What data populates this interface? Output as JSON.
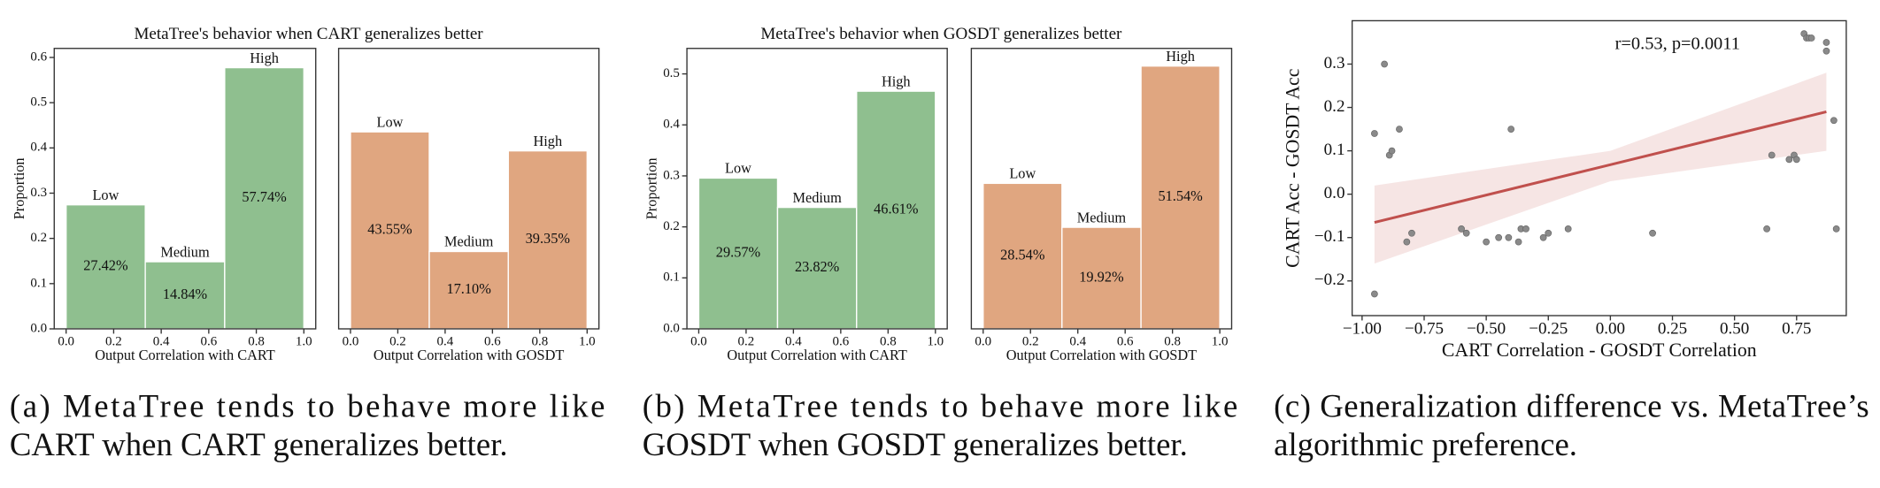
{
  "chart_data": [
    {
      "type": "histogram",
      "title": "MetaTree's behavior when CART generalizes better",
      "xlabel": "Output Correlation with CART",
      "ylabel": "Proportion",
      "bins": [
        0,
        0.333,
        0.667,
        1
      ],
      "values": [
        0.2742,
        0.1484,
        0.5774
      ],
      "value_labels": [
        "27.42%",
        "14.84%",
        "57.74%"
      ],
      "categories": [
        "Low",
        "Medium",
        "High"
      ],
      "color": "#8fbf8f",
      "xlim": [
        -0.05,
        1.05
      ],
      "xticks": [
        {
          "value": 0,
          "label": "0.0"
        },
        0.2,
        0.4,
        0.6,
        0.8,
        {
          "value": 1,
          "label": "1.0"
        }
      ],
      "ylim": [
        0,
        0.62
      ],
      "yticks": [
        {
          "value": 0,
          "label": "0.0"
        },
        0.1,
        0.2,
        0.3,
        0.4,
        0.5,
        0.6
      ]
    },
    {
      "type": "histogram",
      "xlabel": "Output Correlation with GOSDT",
      "bins": [
        0,
        0.333,
        0.667,
        1
      ],
      "values": [
        0.4355,
        0.171,
        0.3935
      ],
      "value_labels": [
        "43.55%",
        "17.10%",
        "39.35%"
      ],
      "categories": [
        "Low",
        "Medium",
        "High"
      ],
      "color": "#e0a680",
      "xlim": [
        -0.05,
        1.05
      ],
      "xticks": [
        {
          "value": 0,
          "label": "0.0"
        },
        0.2,
        0.4,
        0.6,
        0.8,
        {
          "value": 1,
          "label": "1.0"
        }
      ],
      "ylim": [
        0,
        0.62
      ]
    },
    {
      "type": "histogram",
      "title": "MetaTree's behavior when GOSDT generalizes better",
      "xlabel": "Output Correlation with CART",
      "ylabel": "Proportion",
      "bins": [
        0,
        0.333,
        0.667,
        1
      ],
      "values": [
        0.2957,
        0.2382,
        0.4661
      ],
      "value_labels": [
        "29.57%",
        "23.82%",
        "46.61%"
      ],
      "categories": [
        "Low",
        "Medium",
        "High"
      ],
      "color": "#8fbf8f",
      "xlim": [
        -0.05,
        1.05
      ],
      "xticks": [
        {
          "value": 0,
          "label": "0.0"
        },
        0.2,
        0.4,
        0.6,
        0.8,
        {
          "value": 1,
          "label": "1.0"
        }
      ],
      "ylim": [
        0,
        0.55
      ],
      "yticks": [
        {
          "value": 0,
          "label": "0.0"
        },
        0.1,
        0.2,
        0.3,
        0.4,
        0.5
      ]
    },
    {
      "type": "histogram",
      "xlabel": "Output Correlation with GOSDT",
      "bins": [
        0,
        0.333,
        0.667,
        1
      ],
      "values": [
        0.2854,
        0.1992,
        0.5154
      ],
      "value_labels": [
        "28.54%",
        "19.92%",
        "51.54%"
      ],
      "categories": [
        "Low",
        "Medium",
        "High"
      ],
      "color": "#e0a680",
      "xlim": [
        -0.05,
        1.05
      ],
      "xticks": [
        {
          "value": 0,
          "label": "0.0"
        },
        0.2,
        0.4,
        0.6,
        0.8,
        {
          "value": 1,
          "label": "1.0"
        }
      ],
      "ylim": [
        0,
        0.55
      ]
    },
    {
      "type": "scatter",
      "xlabel": "CART Correlation - GOSDT Correlation",
      "ylabel": "CART Acc - GOSDT Acc",
      "annotation": "r=0.53, p=0.0011",
      "color": "#8a8a8a",
      "x": [
        -0.95,
        -0.91,
        -0.89,
        -0.88,
        -0.85,
        -0.82,
        -0.8,
        -0.95,
        -0.6,
        -0.58,
        -0.5,
        -0.45,
        -0.41,
        -0.4,
        -0.37,
        -0.36,
        -0.34,
        -0.27,
        -0.25,
        -0.17,
        0.17,
        0.63,
        0.65,
        0.72,
        0.74,
        0.75,
        0.78,
        0.79,
        0.8,
        0.81,
        0.87,
        0.87,
        0.9,
        0.91
      ],
      "y": [
        0.14,
        0.3,
        0.09,
        0.1,
        0.15,
        -0.11,
        -0.09,
        -0.23,
        -0.08,
        -0.09,
        -0.11,
        -0.1,
        -0.1,
        0.15,
        -0.11,
        -0.08,
        -0.08,
        -0.1,
        -0.09,
        -0.08,
        -0.09,
        -0.08,
        0.09,
        0.08,
        0.09,
        0.08,
        0.37,
        0.36,
        0.36,
        0.36,
        0.33,
        0.35,
        0.17,
        -0.08
      ],
      "regression": {
        "color": "#c0504d",
        "x": [
          -0.95,
          0,
          0.87
        ],
        "y": [
          -0.065,
          0.068,
          0.19
        ],
        "ci_lower": [
          -0.16,
          0.03,
          0.1
        ],
        "ci_upper": [
          0.02,
          0.1,
          0.28
        ]
      },
      "xlim": [
        -1.04,
        0.95
      ],
      "xticks": [
        {
          "value": -1,
          "label": "−1.00"
        },
        {
          "value": -0.75,
          "label": "−0.75"
        },
        {
          "value": -0.5,
          "label": "−0.50"
        },
        {
          "value": -0.25,
          "label": "−0.25"
        },
        {
          "value": 0,
          "label": "0.00"
        },
        {
          "value": 0.25,
          "label": "0.25"
        },
        {
          "value": 0.5,
          "label": "0.50"
        },
        {
          "value": 0.75,
          "label": "0.75"
        }
      ],
      "ylim": [
        -0.28,
        0.4
      ],
      "yticks": [
        {
          "value": -0.2,
          "label": "−0.2"
        },
        {
          "value": -0.1,
          "label": "−0.1"
        },
        {
          "value": 0,
          "label": "0.0"
        },
        0.1,
        0.2,
        0.3
      ]
    }
  ],
  "captions": [
    [
      "(a) MetaTree tends to behave more like",
      "CART when CART generalizes better."
    ],
    [
      "(b) MetaTree tends to behave more like",
      "GOSDT when GOSDT generalizes better."
    ],
    [
      "(c) Generalization difference vs. MetaTree’s",
      "algorithmic preference."
    ]
  ]
}
